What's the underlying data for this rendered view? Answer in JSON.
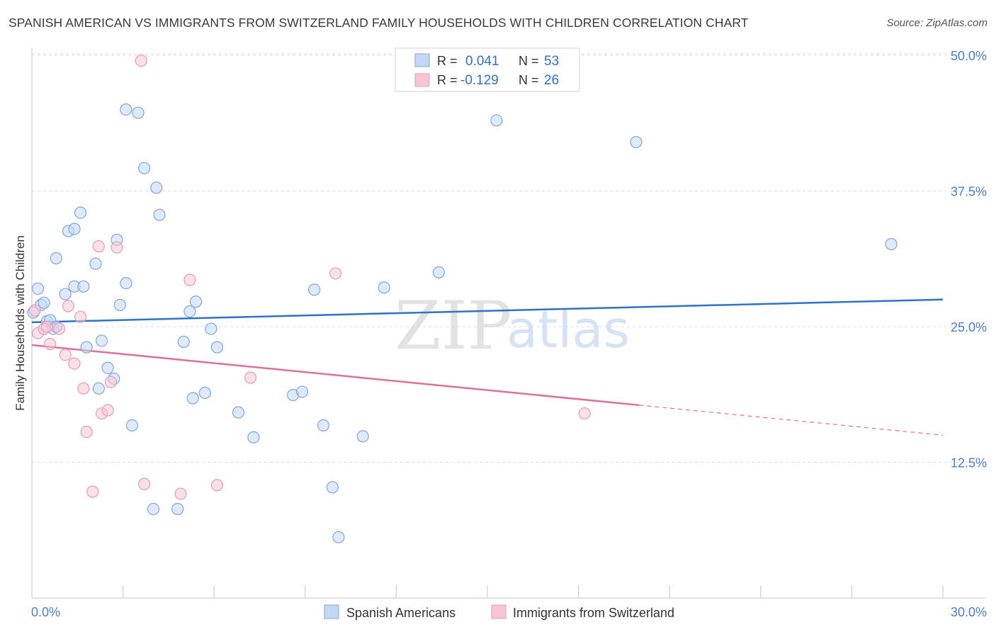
{
  "title": "SPANISH AMERICAN VS IMMIGRANTS FROM SWITZERLAND FAMILY HOUSEHOLDS WITH CHILDREN CORRELATION CHART",
  "source": "Source: ZipAtlas.com",
  "watermark": {
    "zip": "ZIP",
    "atlas": "atlas"
  },
  "colors": {
    "blue": "#2f72c9",
    "blue_fill": "#c3d8f5",
    "pink": "#e0709a",
    "pink_fill": "#f7c6d6",
    "axis_text": "#4a7fd0",
    "grid": "#dcdcdc"
  },
  "legend_top": [
    {
      "series": "blue",
      "r_label": "R =",
      "r_value": "0.041",
      "n_label": "N =",
      "n_value": "53"
    },
    {
      "series": "pink",
      "r_label": "R =",
      "r_value": "-0.129",
      "n_label": "N =",
      "n_value": "26"
    }
  ],
  "chart_data": {
    "type": "scatter",
    "title": "SPANISH AMERICAN VS IMMIGRANTS FROM SWITZERLAND FAMILY HOUSEHOLDS WITH CHILDREN CORRELATION CHART",
    "xlabel": "",
    "ylabel": "Family Households with Children",
    "xlim": [
      0,
      30
    ],
    "ylim": [
      0,
      50
    ],
    "x_tick_labels": [
      "0.0%",
      "30.0%"
    ],
    "y_ticks": [
      12.5,
      25.0,
      37.5,
      50.0
    ],
    "y_tick_labels": [
      "12.5%",
      "25.0%",
      "37.5%",
      "50.0%"
    ],
    "grid": true,
    "legend": "bottom-center",
    "series": [
      {
        "name": "Spanish Americans",
        "color": "blue",
        "r": 0.041,
        "n": 53,
        "trend": {
          "x": [
            0,
            30
          ],
          "y": [
            25.4,
            27.5
          ],
          "dashed_from": null
        },
        "points": [
          [
            0.2,
            28.5
          ],
          [
            0.3,
            27.0
          ],
          [
            0.4,
            27.2
          ],
          [
            0.5,
            25.5
          ],
          [
            0.6,
            25.6
          ],
          [
            0.7,
            24.8
          ],
          [
            0.8,
            25.0
          ],
          [
            0.8,
            31.3
          ],
          [
            1.1,
            28.0
          ],
          [
            1.2,
            33.8
          ],
          [
            1.4,
            28.7
          ],
          [
            1.4,
            34.0
          ],
          [
            1.6,
            35.5
          ],
          [
            1.7,
            28.7
          ],
          [
            1.8,
            23.1
          ],
          [
            2.1,
            30.8
          ],
          [
            2.2,
            19.3
          ],
          [
            2.3,
            23.7
          ],
          [
            2.5,
            21.2
          ],
          [
            2.7,
            20.2
          ],
          [
            2.8,
            33.0
          ],
          [
            2.9,
            27.0
          ],
          [
            3.1,
            29.0
          ],
          [
            3.1,
            45.0
          ],
          [
            3.3,
            15.9
          ],
          [
            3.5,
            44.7
          ],
          [
            3.7,
            39.6
          ],
          [
            4.0,
            8.2
          ],
          [
            4.1,
            37.8
          ],
          [
            4.2,
            35.3
          ],
          [
            4.8,
            8.2
          ],
          [
            5.0,
            23.6
          ],
          [
            5.2,
            26.4
          ],
          [
            5.3,
            18.4
          ],
          [
            5.4,
            27.3
          ],
          [
            5.7,
            18.9
          ],
          [
            5.9,
            24.8
          ],
          [
            6.1,
            23.1
          ],
          [
            6.8,
            17.1
          ],
          [
            7.3,
            14.8
          ],
          [
            8.6,
            18.7
          ],
          [
            8.9,
            19.0
          ],
          [
            9.3,
            28.4
          ],
          [
            9.6,
            15.9
          ],
          [
            9.9,
            10.2
          ],
          [
            10.1,
            5.6
          ],
          [
            10.9,
            14.9
          ],
          [
            11.6,
            28.6
          ],
          [
            13.4,
            30.0
          ],
          [
            15.3,
            44.0
          ],
          [
            19.9,
            42.0
          ],
          [
            28.3,
            32.6
          ],
          [
            0.05,
            26.3
          ]
        ]
      },
      {
        "name": "Immigrants from Switzerland",
        "color": "pink",
        "r": -0.129,
        "n": 26,
        "trend": {
          "x": [
            0,
            30
          ],
          "y": [
            23.3,
            15.0
          ],
          "dashed_from": 20.0
        },
        "points": [
          [
            0.1,
            26.5
          ],
          [
            0.2,
            24.4
          ],
          [
            0.4,
            24.8
          ],
          [
            0.6,
            23.4
          ],
          [
            0.9,
            24.8
          ],
          [
            1.1,
            22.4
          ],
          [
            1.2,
            26.9
          ],
          [
            1.4,
            21.6
          ],
          [
            1.6,
            25.9
          ],
          [
            1.7,
            19.3
          ],
          [
            1.8,
            15.3
          ],
          [
            2.0,
            9.8
          ],
          [
            2.2,
            32.4
          ],
          [
            2.3,
            17.0
          ],
          [
            2.5,
            17.3
          ],
          [
            2.6,
            19.9
          ],
          [
            2.8,
            32.3
          ],
          [
            3.6,
            49.5
          ],
          [
            3.7,
            10.5
          ],
          [
            4.9,
            9.6
          ],
          [
            5.2,
            29.3
          ],
          [
            6.1,
            10.4
          ],
          [
            7.2,
            20.3
          ],
          [
            10.0,
            29.9
          ],
          [
            18.2,
            17.0
          ],
          [
            0.5,
            25.0
          ]
        ]
      }
    ]
  },
  "legend_bottom": [
    {
      "series": "blue",
      "label": "Spanish Americans"
    },
    {
      "series": "pink",
      "label": "Immigrants from Switzerland"
    }
  ]
}
